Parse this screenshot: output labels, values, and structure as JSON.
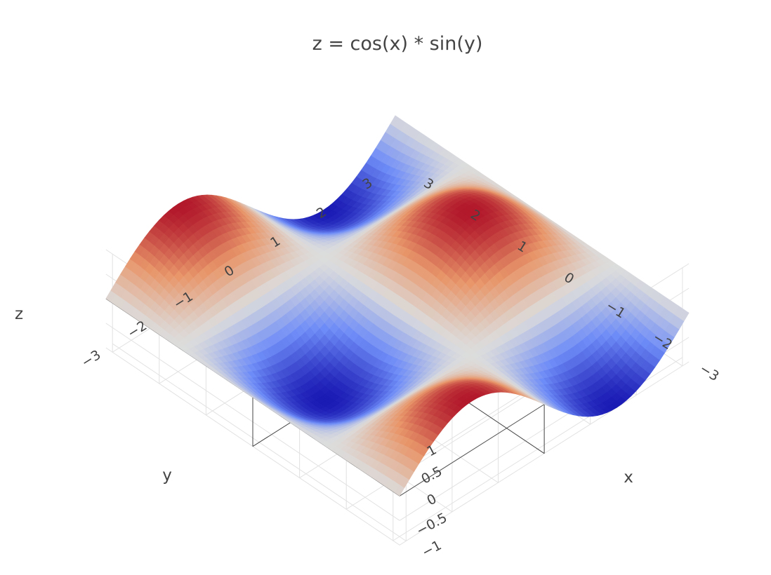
{
  "chart_data": {
    "type": "surface",
    "title": "z = cos(x) * sin(y)",
    "function": "cos(x) * sin(y)",
    "xlabel": "x",
    "ylabel": "y",
    "zlabel": "z",
    "xlim": [
      -3.14,
      3.14
    ],
    "ylim": [
      -3.14,
      3.14
    ],
    "zlim": [
      -1,
      1
    ],
    "x_ticks": [
      "−3",
      "−2",
      "−1",
      "0",
      "1",
      "2",
      "3"
    ],
    "y_ticks": [
      "−3",
      "−2",
      "−1",
      "0",
      "1",
      "2",
      "3"
    ],
    "z_ticks": [
      "−1",
      "−0.5",
      "0",
      "0.5",
      "1"
    ],
    "x_tick_values": [
      -3,
      -2,
      -1,
      0,
      1,
      2,
      3
    ],
    "y_tick_values": [
      -3,
      -2,
      -1,
      0,
      1,
      2,
      3
    ],
    "z_tick_values": [
      -1,
      -0.5,
      0,
      0.5,
      1
    ],
    "extrema": [
      {
        "x": 0,
        "y": -1.57,
        "z": -1
      },
      {
        "x": 0,
        "y": 1.57,
        "z": 1
      },
      {
        "x": -3.14,
        "y": -1.57,
        "z": 1
      },
      {
        "x": -3.14,
        "y": 1.57,
        "z": -1
      },
      {
        "x": 3.14,
        "y": -1.57,
        "z": 1
      },
      {
        "x": 3.14,
        "y": 1.57,
        "z": -1
      }
    ],
    "colorscale": [
      "#1a1ab4",
      "#6e8cf7",
      "#dcdcdc",
      "#e8966a",
      "#b2182b"
    ],
    "grid": true,
    "legend": "none"
  }
}
